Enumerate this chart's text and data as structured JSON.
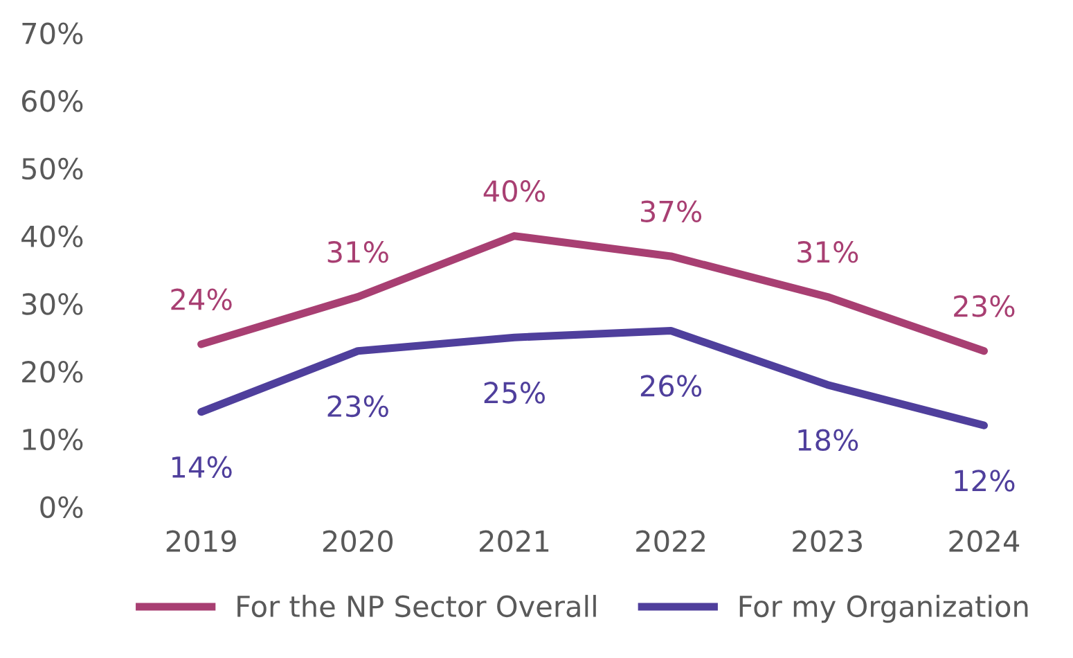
{
  "chart_data": {
    "type": "line",
    "categories": [
      "2019",
      "2020",
      "2021",
      "2022",
      "2023",
      "2024"
    ],
    "series": [
      {
        "name": "For the NP Sector Overall",
        "color": "#a83f72",
        "values": [
          24,
          31,
          40,
          37,
          31,
          23
        ],
        "value_labels": [
          "24%",
          "31%",
          "40%",
          "37%",
          "31%",
          "23%"
        ]
      },
      {
        "name": "For my Organization",
        "color": "#4f3f9c",
        "values": [
          14,
          23,
          25,
          26,
          18,
          12
        ],
        "value_labels": [
          "14%",
          "23%",
          "25%",
          "26%",
          "18%",
          "12%"
        ]
      }
    ],
    "ylim": [
      0,
      70
    ],
    "yticks": [
      {
        "value": 0,
        "label": "0%"
      },
      {
        "value": 10,
        "label": "10%"
      },
      {
        "value": 20,
        "label": "20%"
      },
      {
        "value": 30,
        "label": "30%"
      },
      {
        "value": 40,
        "label": "40%"
      },
      {
        "value": 50,
        "label": "50%"
      },
      {
        "value": 60,
        "label": "60%"
      },
      {
        "value": 70,
        "label": "70%"
      }
    ],
    "grid": false,
    "legend": "bottom",
    "marker": "none",
    "line_style": "solid"
  }
}
